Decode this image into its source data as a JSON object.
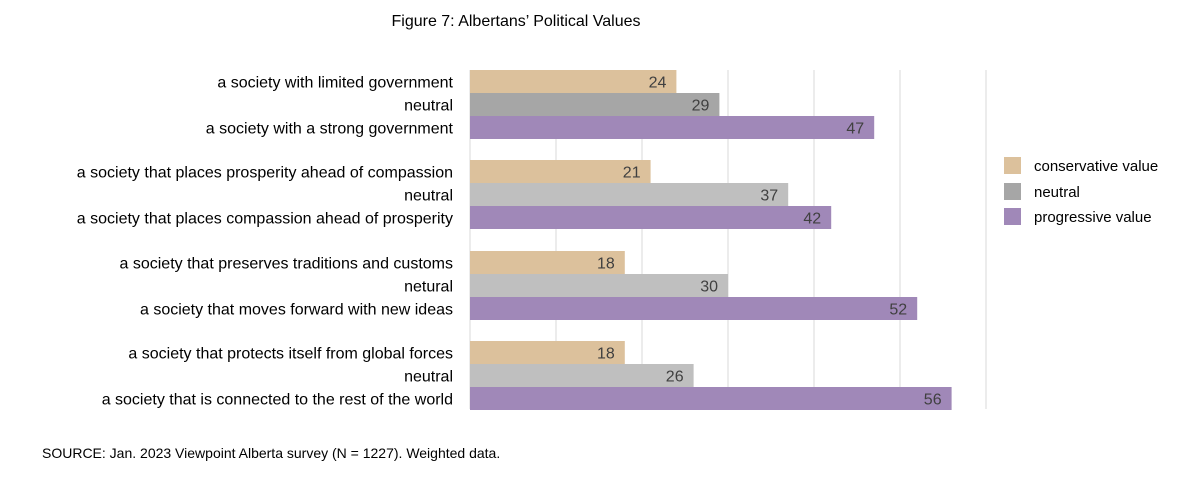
{
  "chart_data": {
    "type": "bar",
    "orientation": "horizontal",
    "title": "Figure 7: Albertans’ Political Values",
    "xlabel": "",
    "ylabel": "",
    "xlim": [
      0,
      60
    ],
    "grid": true,
    "legend_position": "right",
    "legend": [
      {
        "label": "conservative value",
        "color": "#DCC19C"
      },
      {
        "label": "neutral",
        "color": "#A6A6A6"
      },
      {
        "label": "progressive value",
        "color": "#A088B8"
      }
    ],
    "groups": [
      {
        "bars": [
          {
            "label": "a society with limited government",
            "value": 24,
            "kind": "conservative",
            "color": "#DCC19C"
          },
          {
            "label": "neutral",
            "value": 29,
            "kind": "neutral",
            "color": "#A6A6A6"
          },
          {
            "label": "a society with a strong government",
            "value": 47,
            "kind": "progressive",
            "color": "#A088B8"
          }
        ]
      },
      {
        "bars": [
          {
            "label": "a society that places prosperity ahead of compassion",
            "value": 21,
            "kind": "conservative",
            "color": "#DCC19C"
          },
          {
            "label": "neutral",
            "value": 37,
            "kind": "neutral",
            "color": "#BFBFBF"
          },
          {
            "label": "a society that places compassion ahead of prosperity",
            "value": 42,
            "kind": "progressive",
            "color": "#A088B8"
          }
        ]
      },
      {
        "bars": [
          {
            "label": "a society that preserves traditions and customs",
            "value": 18,
            "kind": "conservative",
            "color": "#DCC19C"
          },
          {
            "label": "netural",
            "value": 30,
            "kind": "neutral",
            "color": "#BFBFBF"
          },
          {
            "label": "a society that moves forward with new ideas",
            "value": 52,
            "kind": "progressive",
            "color": "#A088B8"
          }
        ]
      },
      {
        "bars": [
          {
            "label": "a society that protects itself from global forces",
            "value": 18,
            "kind": "conservative",
            "color": "#DCC19C"
          },
          {
            "label": "neutral",
            "value": 26,
            "kind": "neutral",
            "color": "#BFBFBF"
          },
          {
            "label": "a society that is connected to the rest of the world",
            "value": 56,
            "kind": "progressive",
            "color": "#A088B8"
          }
        ]
      }
    ]
  },
  "source": "SOURCE: Jan. 2023 Viewpoint Alberta survey (N = 1227). Weighted data.",
  "colors": {
    "grid": "#D9D9D9",
    "value_label": "#404040",
    "text": "#000000"
  }
}
